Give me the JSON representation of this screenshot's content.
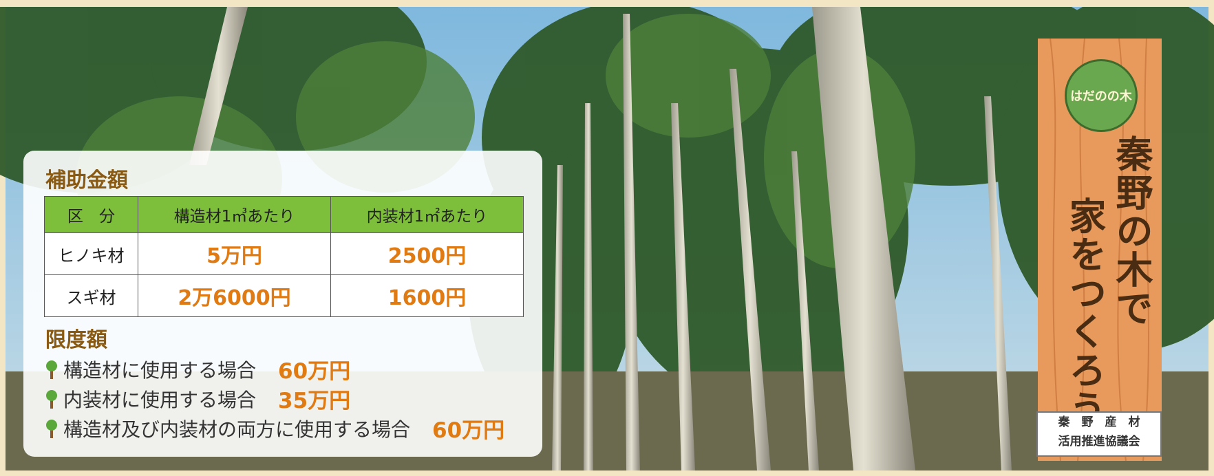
{
  "card": {
    "subsidy_title": "補助金額",
    "table": {
      "header": [
        "区　分",
        "構造材1㎥あたり",
        "内装材1㎡あたり"
      ],
      "rows": [
        [
          "ヒノキ材",
          "5万円",
          "2500円"
        ],
        [
          "スギ材",
          "2万6000円",
          "1600円"
        ]
      ]
    },
    "limit_title": "限度額",
    "limits": [
      {
        "label": "構造材に使用する場合",
        "amount": "60万円"
      },
      {
        "label": "内装材に使用する場合",
        "amount": "35万円"
      },
      {
        "label": "構造材及び内装材の両方に使用する場合",
        "amount": "60万円"
      }
    ]
  },
  "banner": {
    "logo": "はだのの木",
    "slogan": [
      "秦野の木で",
      "家をつくろう"
    ],
    "org": [
      "秦　野　産　材",
      "活用推進協議会"
    ]
  }
}
